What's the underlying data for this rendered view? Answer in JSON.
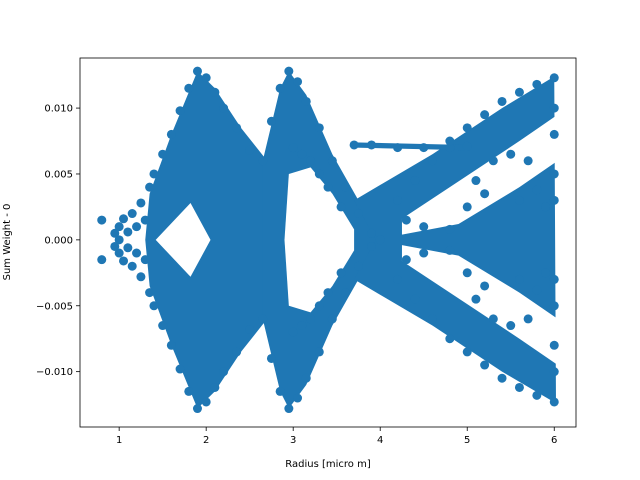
{
  "chart_data": {
    "type": "scatter",
    "title": "",
    "xlabel": "Radius [micro m]",
    "ylabel": "Sum Weight - 0",
    "xlim": [
      0.55,
      6.25
    ],
    "ylim": [
      -0.0142,
      0.0138
    ],
    "xticks": [
      1,
      2,
      3,
      4,
      5,
      6
    ],
    "xtick_labels": [
      "1",
      "2",
      "3",
      "4",
      "5",
      "6"
    ],
    "yticks": [
      -0.01,
      -0.005,
      0.0,
      0.005,
      0.01
    ],
    "ytick_labels": [
      "−0.010",
      "−0.005",
      "0.000",
      "0.005",
      "0.010"
    ],
    "grid": false,
    "legend": "none",
    "marker_color": "#1f77b4",
    "marker": "circle",
    "series": [
      {
        "name": "Sum Weight - 0",
        "description_points": "Dense symmetric scatter of weights vs radius; values listed as [radius, weight] pairs approximating the visible point cloud.",
        "points": [
          [
            0.8,
            0.0015
          ],
          [
            0.8,
            -0.0015
          ],
          [
            0.95,
            0.0005
          ],
          [
            0.95,
            -0.0005
          ],
          [
            1.0,
            0.001
          ],
          [
            1.0,
            -0.001
          ],
          [
            1.0,
            0.0
          ],
          [
            1.05,
            0.0016
          ],
          [
            1.05,
            -0.0016
          ],
          [
            1.1,
            0.0006
          ],
          [
            1.1,
            -0.0006
          ],
          [
            1.15,
            0.002
          ],
          [
            1.15,
            -0.002
          ],
          [
            1.2,
            0.001
          ],
          [
            1.2,
            -0.001
          ],
          [
            1.25,
            0.0028
          ],
          [
            1.25,
            -0.0028
          ],
          [
            1.3,
            0.0015
          ],
          [
            1.3,
            -0.0015
          ],
          [
            1.35,
            0.004
          ],
          [
            1.35,
            -0.004
          ],
          [
            1.4,
            0.005
          ],
          [
            1.4,
            -0.005
          ],
          [
            1.5,
            0.0065
          ],
          [
            1.5,
            -0.0065
          ],
          [
            1.6,
            0.008
          ],
          [
            1.6,
            -0.008
          ],
          [
            1.7,
            0.0098
          ],
          [
            1.7,
            -0.0098
          ],
          [
            1.8,
            0.0115
          ],
          [
            1.8,
            -0.0115
          ],
          [
            1.9,
            0.0128
          ],
          [
            1.9,
            -0.0128
          ],
          [
            2.0,
            0.0123
          ],
          [
            2.0,
            -0.0123
          ],
          [
            2.1,
            0.0112
          ],
          [
            2.1,
            -0.0112
          ],
          [
            2.2,
            0.01
          ],
          [
            2.2,
            -0.01
          ],
          [
            2.35,
            0.0085
          ],
          [
            2.35,
            -0.0085
          ],
          [
            2.5,
            0.0068
          ],
          [
            2.5,
            -0.0068
          ],
          [
            2.65,
            0.006
          ],
          [
            2.65,
            -0.006
          ],
          [
            2.75,
            0.009
          ],
          [
            2.75,
            -0.009
          ],
          [
            2.85,
            0.0115
          ],
          [
            2.85,
            -0.0115
          ],
          [
            2.95,
            0.0128
          ],
          [
            2.95,
            -0.0128
          ],
          [
            3.05,
            0.012
          ],
          [
            3.05,
            -0.012
          ],
          [
            3.15,
            0.0105
          ],
          [
            3.15,
            -0.0105
          ],
          [
            3.3,
            0.0085
          ],
          [
            3.3,
            -0.0085
          ],
          [
            3.45,
            0.006
          ],
          [
            3.45,
            -0.006
          ],
          [
            3.6,
            0.004
          ],
          [
            3.6,
            -0.004
          ],
          [
            3.75,
            0.002
          ],
          [
            3.75,
            -0.002
          ],
          [
            3.9,
            0.0005
          ],
          [
            3.9,
            -0.0005
          ],
          [
            4.0,
            0.0
          ],
          [
            3.0,
            0.007
          ],
          [
            3.0,
            -0.007
          ],
          [
            3.1,
            0.0065
          ],
          [
            3.1,
            -0.0065
          ],
          [
            3.2,
            0.006
          ],
          [
            3.2,
            -0.006
          ],
          [
            3.3,
            0.005
          ],
          [
            3.3,
            -0.005
          ],
          [
            3.4,
            0.004
          ],
          [
            3.4,
            -0.004
          ],
          [
            3.55,
            0.0025
          ],
          [
            3.55,
            -0.0025
          ],
          [
            3.7,
            0.0072
          ],
          [
            3.9,
            0.0072
          ],
          [
            4.2,
            0.007
          ],
          [
            4.5,
            0.007
          ],
          [
            4.8,
            0.007
          ],
          [
            5.0,
            0.0071
          ],
          [
            4.2,
            0.003
          ],
          [
            4.2,
            -0.003
          ],
          [
            4.4,
            0.0045
          ],
          [
            4.4,
            -0.0045
          ],
          [
            4.6,
            0.006
          ],
          [
            4.6,
            -0.006
          ],
          [
            4.8,
            0.0075
          ],
          [
            4.8,
            -0.0075
          ],
          [
            5.0,
            0.0085
          ],
          [
            5.0,
            -0.0085
          ],
          [
            5.2,
            0.0095
          ],
          [
            5.2,
            -0.0095
          ],
          [
            5.4,
            0.0105
          ],
          [
            5.4,
            -0.0105
          ],
          [
            5.6,
            0.0112
          ],
          [
            5.6,
            -0.0112
          ],
          [
            5.8,
            0.0118
          ],
          [
            5.8,
            -0.0118
          ],
          [
            6.0,
            0.0123
          ],
          [
            6.0,
            -0.0123
          ],
          [
            6.0,
            0.008
          ],
          [
            6.0,
            -0.008
          ],
          [
            6.0,
            0.005
          ],
          [
            6.0,
            -0.005
          ],
          [
            6.0,
            0.003
          ],
          [
            6.0,
            -0.003
          ],
          [
            6.0,
            0.01
          ],
          [
            6.0,
            -0.01
          ],
          [
            4.3,
            0.0015
          ],
          [
            4.3,
            -0.0015
          ],
          [
            4.5,
            0.001
          ],
          [
            4.5,
            -0.001
          ],
          [
            4.8,
            0.0008
          ],
          [
            4.8,
            -0.0008
          ],
          [
            5.0,
            0.0025
          ],
          [
            5.0,
            -0.0025
          ],
          [
            5.2,
            0.0035
          ],
          [
            5.2,
            -0.0035
          ],
          [
            5.1,
            0.0045
          ],
          [
            5.1,
            -0.0045
          ],
          [
            5.3,
            0.006
          ],
          [
            5.3,
            -0.006
          ],
          [
            5.5,
            0.0065
          ],
          [
            5.5,
            -0.0065
          ],
          [
            5.7,
            0.006
          ],
          [
            5.7,
            -0.006
          ],
          [
            5.6,
            0.003
          ],
          [
            5.6,
            -0.003
          ],
          [
            5.8,
            0.0038
          ],
          [
            5.8,
            -0.0038
          ],
          [
            5.9,
            0.0025
          ],
          [
            5.9,
            -0.0025
          ]
        ]
      }
    ]
  }
}
